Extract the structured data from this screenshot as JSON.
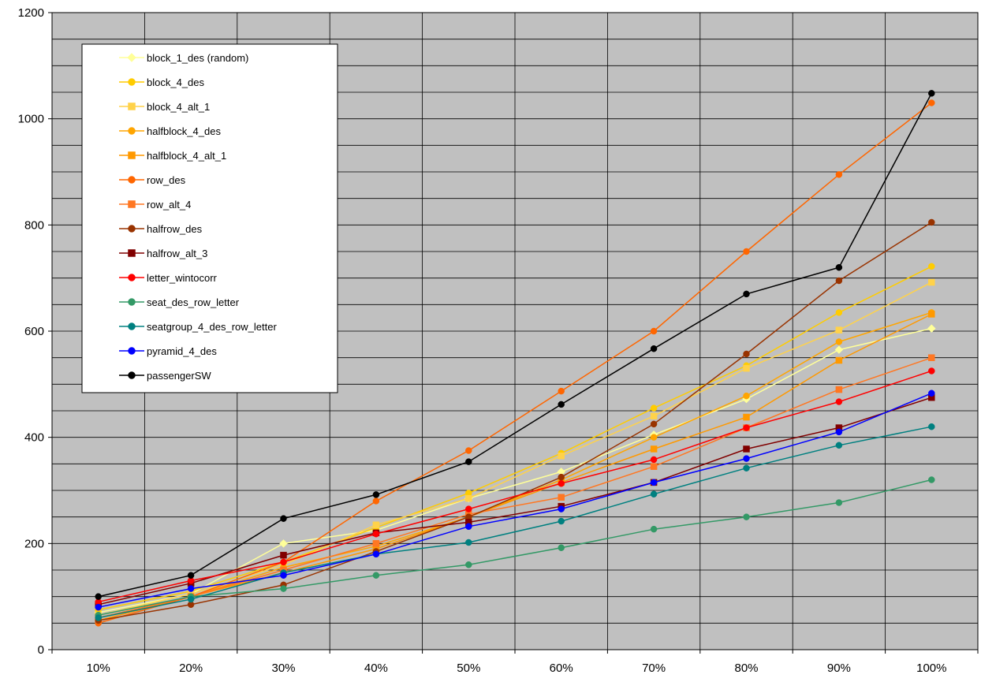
{
  "chart_data": {
    "type": "line",
    "title": "",
    "xlabel": "",
    "ylabel": "",
    "categories": [
      "10%",
      "20%",
      "30%",
      "40%",
      "50%",
      "60%",
      "70%",
      "80%",
      "90%",
      "100%"
    ],
    "ylim": [
      0,
      1200
    ],
    "yticks": [
      0,
      200,
      400,
      600,
      800,
      1000,
      1200
    ],
    "grid": true,
    "legend_position": "top-left",
    "plot_background": "#c0c0c0",
    "series": [
      {
        "name": "block_1_des (random)",
        "color": "#ffff99",
        "marker": "diamond",
        "values": [
          70,
          105,
          200,
          225,
          285,
          335,
          405,
          472,
          565,
          605
        ]
      },
      {
        "name": "block_4_des",
        "color": "#ffcc00",
        "marker": "circle",
        "values": [
          75,
          110,
          165,
          230,
          295,
          370,
          455,
          535,
          635,
          722
        ]
      },
      {
        "name": "block_4_alt_1",
        "color": "#ffd24a",
        "marker": "square",
        "values": [
          65,
          105,
          160,
          235,
          285,
          365,
          440,
          530,
          602,
          692
        ]
      },
      {
        "name": "halfblock_4_des",
        "color": "#ffa500",
        "marker": "circle",
        "values": [
          60,
          100,
          155,
          195,
          250,
          320,
          400,
          478,
          580,
          635
        ]
      },
      {
        "name": "halfblock_4_alt_1",
        "color": "#ff9900",
        "marker": "square",
        "values": [
          55,
          100,
          145,
          190,
          250,
          315,
          378,
          438,
          545,
          632
        ]
      },
      {
        "name": "row_des",
        "color": "#ff6600",
        "marker": "circle",
        "values": [
          50,
          100,
          165,
          280,
          375,
          487,
          600,
          750,
          895,
          1030
        ]
      },
      {
        "name": "row_alt_4",
        "color": "#ff7722",
        "marker": "square",
        "values": [
          60,
          100,
          150,
          200,
          255,
          287,
          345,
          418,
          490,
          550
        ]
      },
      {
        "name": "halfrow_des",
        "color": "#993300",
        "marker": "circle",
        "values": [
          55,
          85,
          122,
          185,
          250,
          325,
          425,
          557,
          695,
          805
        ]
      },
      {
        "name": "halfrow_alt_3",
        "color": "#800000",
        "marker": "square",
        "values": [
          85,
          125,
          178,
          220,
          240,
          270,
          315,
          378,
          418,
          475
        ]
      },
      {
        "name": "letter_wintocorr",
        "color": "#ff0000",
        "marker": "circle",
        "values": [
          90,
          130,
          165,
          218,
          265,
          313,
          358,
          418,
          467,
          525
        ]
      },
      {
        "name": "seat_des_row_letter",
        "color": "#339966",
        "marker": "circle",
        "values": [
          65,
          100,
          115,
          140,
          160,
          192,
          227,
          250,
          277,
          320
        ]
      },
      {
        "name": "seatgroup_4_des_row_letter",
        "color": "#008080",
        "marker": "circle",
        "values": [
          60,
          95,
          145,
          180,
          202,
          242,
          293,
          342,
          385,
          420
        ]
      },
      {
        "name": "pyramid_4_des",
        "color": "#0000ff",
        "marker": "circle",
        "values": [
          80,
          115,
          140,
          180,
          232,
          265,
          315,
          360,
          410,
          483
        ]
      },
      {
        "name": "passengerSW",
        "color": "#000000",
        "marker": "circle",
        "values": [
          100,
          140,
          247,
          292,
          354,
          462,
          567,
          670,
          720,
          1048
        ]
      }
    ]
  }
}
